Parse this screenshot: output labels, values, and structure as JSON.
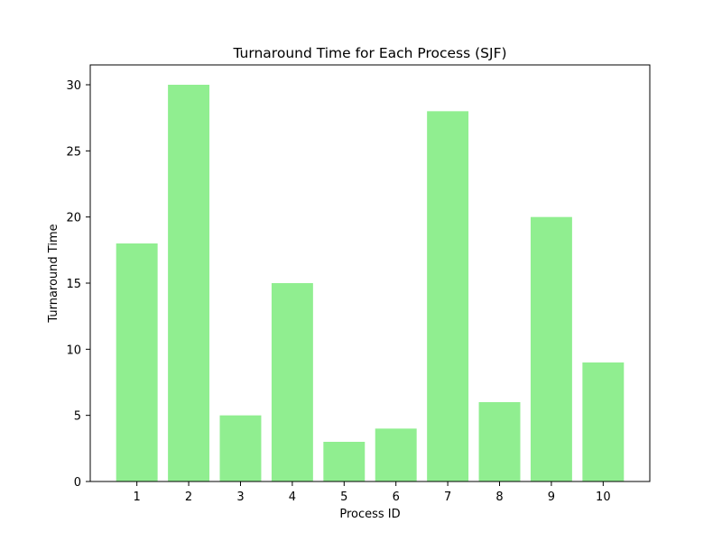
{
  "chart_data": {
    "type": "bar",
    "title": "Turnaround Time for Each Process (SJF)",
    "xlabel": "Process ID",
    "ylabel": "Turnaround Time",
    "categories": [
      "1",
      "2",
      "3",
      "4",
      "5",
      "6",
      "7",
      "8",
      "9",
      "10"
    ],
    "values": [
      18,
      30,
      5,
      15,
      3,
      4,
      28,
      6,
      20,
      9
    ],
    "ylim": [
      0,
      31.5
    ],
    "yticks": [
      0,
      5,
      10,
      15,
      20,
      25,
      30
    ],
    "bar_color": "#90ee90",
    "grid": false,
    "legend": "none"
  }
}
